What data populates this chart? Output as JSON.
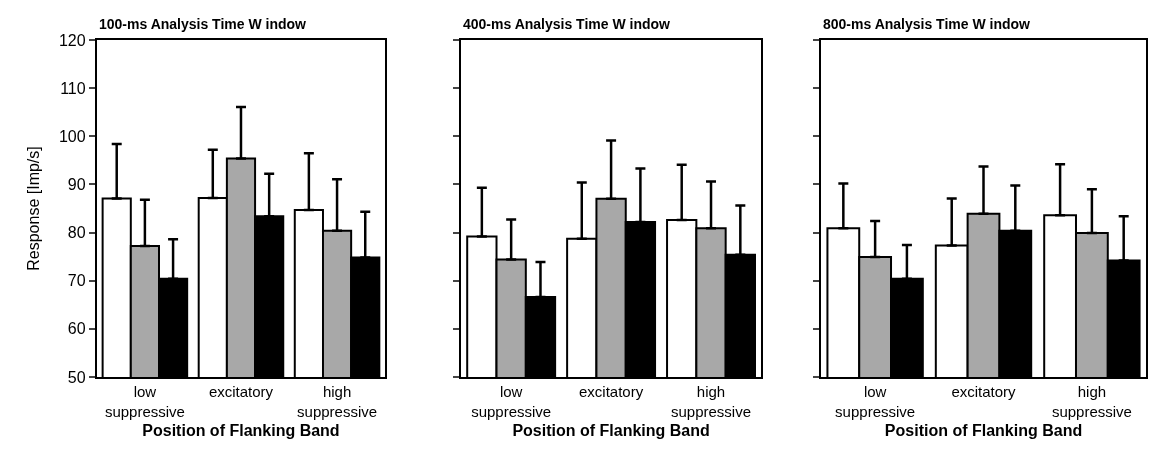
{
  "chart_data": [
    {
      "type": "bar",
      "title": "100-ms Analysis Time W indow",
      "xlabel": "Position of Flanking Band",
      "ylabel": "Response [Imp/s]",
      "categories": [
        "low suppressive",
        "excitatory",
        "high suppressive"
      ],
      "ylim": [
        50,
        120
      ],
      "yticks": [
        50,
        60,
        70,
        80,
        90,
        100,
        110,
        120
      ],
      "series": [
        {
          "color": "#ffffff",
          "values": [
            87.1,
            87.2,
            84.7
          ],
          "errors": [
            [
              87.1,
              98.4
            ],
            [
              87.2,
              97.2
            ],
            [
              84.7,
              96.5
            ]
          ]
        },
        {
          "color": "#a8a8a8",
          "values": [
            77.2,
            95.4,
            80.4
          ],
          "errors": [
            [
              77.2,
              86.8
            ],
            [
              95.4,
              106.1
            ],
            [
              80.4,
              91.1
            ]
          ]
        },
        {
          "color": "#000000",
          "values": [
            70.4,
            83.4,
            74.8
          ],
          "errors": [
            [
              70.4,
              78.6
            ],
            [
              83.4,
              92.2
            ],
            [
              74.8,
              84.3
            ]
          ]
        }
      ]
    },
    {
      "type": "bar",
      "title": "400-ms Analysis Time W indow",
      "xlabel": "Position of Flanking Band",
      "categories": [
        "low suppressive",
        "excitatory",
        "high suppressive"
      ],
      "ylim": [
        50,
        120
      ],
      "yticks": [
        50,
        60,
        70,
        80,
        90,
        100,
        110,
        120
      ],
      "tick_labels": "x",
      "series": [
        {
          "color": "#ffffff",
          "values": [
            79.2,
            78.7,
            82.6
          ],
          "errors": [
            [
              79.2,
              89.3
            ],
            [
              78.7,
              90.4
            ],
            [
              82.6,
              94.1
            ]
          ]
        },
        {
          "color": "#a8a8a8",
          "values": [
            74.4,
            87.0,
            80.9
          ],
          "errors": [
            [
              74.4,
              82.7
            ],
            [
              87.0,
              99.1
            ],
            [
              80.9,
              90.6
            ]
          ]
        },
        {
          "color": "#000000",
          "values": [
            66.6,
            82.2,
            75.4
          ],
          "errors": [
            [
              66.6,
              73.9
            ],
            [
              82.2,
              93.3
            ],
            [
              75.4,
              85.6
            ]
          ]
        }
      ]
    },
    {
      "type": "bar",
      "title": "800-ms Analysis Time W indow",
      "xlabel": "Position of Flanking Band",
      "categories": [
        "low suppressive",
        "excitatory",
        "high suppressive"
      ],
      "ylim": [
        50,
        120
      ],
      "yticks": [
        50,
        60,
        70,
        80,
        90,
        100,
        110,
        120
      ],
      "tick_labels": "x",
      "series": [
        {
          "color": "#ffffff",
          "values": [
            80.9,
            77.3,
            83.6
          ],
          "errors": [
            [
              80.9,
              90.2
            ],
            [
              77.3,
              87.1
            ],
            [
              83.6,
              94.2
            ]
          ]
        },
        {
          "color": "#a8a8a8",
          "values": [
            74.9,
            83.9,
            79.9
          ],
          "errors": [
            [
              74.9,
              82.4
            ],
            [
              83.9,
              93.7
            ],
            [
              79.9,
              89.0
            ]
          ]
        },
        {
          "color": "#000000",
          "values": [
            70.4,
            80.4,
            74.2
          ],
          "errors": [
            [
              70.4,
              77.4
            ],
            [
              80.4,
              89.8
            ],
            [
              74.2,
              83.4
            ]
          ]
        }
      ]
    }
  ]
}
